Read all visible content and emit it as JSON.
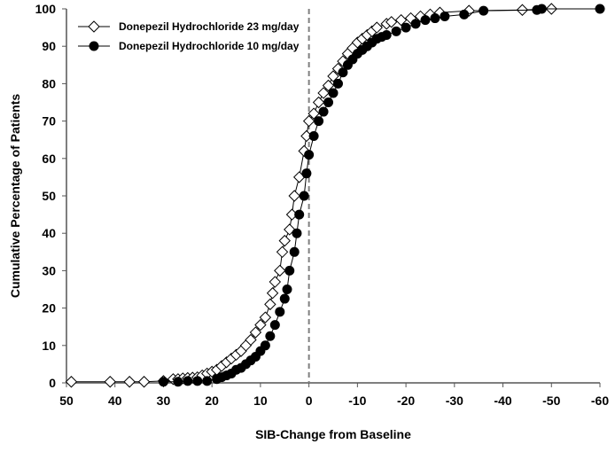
{
  "chart_data": {
    "type": "line",
    "title": "",
    "xlabel": "SIB-Change from Baseline",
    "ylabel": "Cumulative Percentage of Patients",
    "xlim": [
      50,
      -60
    ],
    "ylim": [
      0,
      100
    ],
    "x_reversed": true,
    "x_ticks": [
      "50",
      "40",
      "30",
      "20",
      "10",
      "0",
      "-10",
      "-20",
      "-30",
      "-40",
      "-50",
      "-60"
    ],
    "y_ticks": [
      "0",
      "10",
      "20",
      "30",
      "40",
      "50",
      "60",
      "70",
      "80",
      "90",
      "100"
    ],
    "grid": false,
    "reference_line": {
      "x": 0,
      "style": "dashed",
      "color": "#808080"
    },
    "legend_placement": "top-left",
    "series": [
      {
        "name": "Donepezil Hydrochloride 23 mg/day",
        "marker": "open-diamond",
        "color": "#000000",
        "points": [
          [
            49,
            0.3
          ],
          [
            41,
            0.3
          ],
          [
            37,
            0.3
          ],
          [
            34,
            0.3
          ],
          [
            30,
            0.5
          ],
          [
            28,
            1
          ],
          [
            27,
            1
          ],
          [
            26,
            1.2
          ],
          [
            25,
            1.3
          ],
          [
            24,
            1.4
          ],
          [
            23,
            1.5
          ],
          [
            22,
            2
          ],
          [
            21,
            2.5
          ],
          [
            20,
            3
          ],
          [
            19,
            3.5
          ],
          [
            18,
            4.5
          ],
          [
            17,
            5.5
          ],
          [
            16,
            6.5
          ],
          [
            15,
            7.5
          ],
          [
            14,
            8.5
          ],
          [
            13,
            10
          ],
          [
            12,
            11.5
          ],
          [
            11,
            13.5
          ],
          [
            10,
            15.5
          ],
          [
            9,
            17.5
          ],
          [
            8,
            21
          ],
          [
            7.5,
            24
          ],
          [
            7,
            27
          ],
          [
            6,
            30
          ],
          [
            5.5,
            35
          ],
          [
            5,
            38
          ],
          [
            4,
            41
          ],
          [
            3.5,
            45
          ],
          [
            3,
            50
          ],
          [
            2,
            55
          ],
          [
            1,
            62
          ],
          [
            0.5,
            66
          ],
          [
            0,
            70
          ],
          [
            -1,
            72
          ],
          [
            -2,
            75
          ],
          [
            -3,
            77.5
          ],
          [
            -4,
            79.5
          ],
          [
            -5,
            82
          ],
          [
            -6,
            84
          ],
          [
            -7,
            86
          ],
          [
            -8,
            88
          ],
          [
            -9,
            89.5
          ],
          [
            -10,
            91
          ],
          [
            -11,
            92
          ],
          [
            -12,
            93
          ],
          [
            -13,
            94
          ],
          [
            -14,
            95
          ],
          [
            -16,
            96
          ],
          [
            -17,
            96.5
          ],
          [
            -19,
            97
          ],
          [
            -21,
            97.5
          ],
          [
            -23,
            98
          ],
          [
            -25,
            98.5
          ],
          [
            -27,
            99
          ],
          [
            -33,
            99.5
          ],
          [
            -44,
            99.7
          ],
          [
            -50,
            100
          ]
        ]
      },
      {
        "name": "Donepezil Hydrochloride 10 mg/day",
        "marker": "filled-circle",
        "color": "#000000",
        "points": [
          [
            30,
            0.3
          ],
          [
            27,
            0.3
          ],
          [
            25,
            0.5
          ],
          [
            23,
            0.5
          ],
          [
            21,
            0.5
          ],
          [
            19,
            1
          ],
          [
            18,
            1.5
          ],
          [
            17,
            2
          ],
          [
            16,
            2.5
          ],
          [
            15,
            3.5
          ],
          [
            14,
            4
          ],
          [
            13,
            5
          ],
          [
            12,
            6
          ],
          [
            11,
            7
          ],
          [
            10,
            8.5
          ],
          [
            9,
            10
          ],
          [
            8,
            12.5
          ],
          [
            7,
            15.5
          ],
          [
            6,
            19
          ],
          [
            5,
            22.5
          ],
          [
            4.5,
            25
          ],
          [
            4,
            30
          ],
          [
            3,
            35
          ],
          [
            2.5,
            40
          ],
          [
            2,
            45
          ],
          [
            1,
            50
          ],
          [
            0.5,
            56
          ],
          [
            0,
            61
          ],
          [
            -1,
            66
          ],
          [
            -2,
            70
          ],
          [
            -3,
            72.5
          ],
          [
            -4,
            75
          ],
          [
            -5,
            77.5
          ],
          [
            -6,
            80
          ],
          [
            -7,
            83
          ],
          [
            -8,
            85
          ],
          [
            -9,
            86.5
          ],
          [
            -10,
            88
          ],
          [
            -11,
            89
          ],
          [
            -12,
            90
          ],
          [
            -13,
            91
          ],
          [
            -14,
            92
          ],
          [
            -15,
            92.5
          ],
          [
            -16,
            93
          ],
          [
            -18,
            94
          ],
          [
            -20,
            95
          ],
          [
            -22,
            96
          ],
          [
            -24,
            97
          ],
          [
            -26,
            97.5
          ],
          [
            -28,
            98
          ],
          [
            -32,
            98.5
          ],
          [
            -36,
            99.5
          ],
          [
            -47,
            99.7
          ],
          [
            -48,
            100
          ],
          [
            -60,
            100
          ]
        ]
      }
    ]
  }
}
